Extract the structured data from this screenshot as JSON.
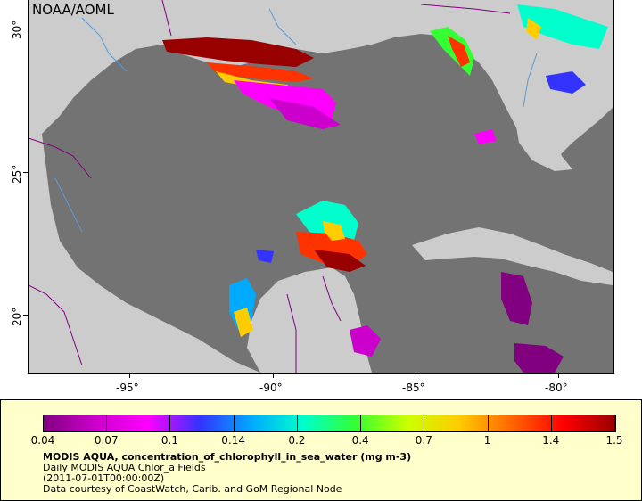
{
  "map": {
    "credit": "NOAA/AOML",
    "latitude_labels": [
      "30°",
      "25°",
      "20°"
    ],
    "longitude_labels": [
      "-95°",
      "-90°",
      "-85°",
      "-80°"
    ],
    "colors": {
      "ocean": "#737373",
      "land": "#cccccc",
      "rivers": "#5b9bd5",
      "borders": "#800080"
    }
  },
  "legend": {
    "colorbar_labels": [
      "0.04",
      "0.07",
      "0.1",
      "0.14",
      "0.2",
      "0.4",
      "0.7",
      "1",
      "1.4",
      "1.5"
    ],
    "colorbar_colors": [
      "#800080",
      "#cc00cc",
      "#ff00ff",
      "#3333ff",
      "#00aaff",
      "#00ffcc",
      "#33ff33",
      "#ccff00",
      "#ffcc00",
      "#ff6600",
      "#ff0000",
      "#990000"
    ],
    "title": "MODIS AQUA, concentration_of_chlorophyll_in_sea_water (mg m-3)",
    "subtitle": "Daily MODIS AQUA Chlor_a Fields",
    "time": "(2011-07-01T00:00:00Z)",
    "courtesy": "Data courtesy of CoastWatch, Carib. and GoM Regional Node"
  }
}
